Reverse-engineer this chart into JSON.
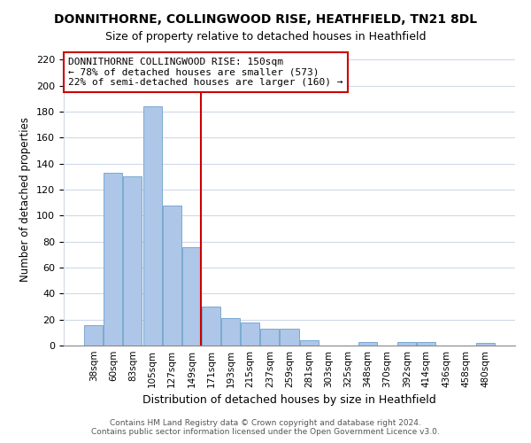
{
  "title": "DONNITHORNE, COLLINGWOOD RISE, HEATHFIELD, TN21 8DL",
  "subtitle": "Size of property relative to detached houses in Heathfield",
  "xlabel": "Distribution of detached houses by size in Heathfield",
  "ylabel": "Number of detached properties",
  "bar_labels": [
    "38sqm",
    "60sqm",
    "83sqm",
    "105sqm",
    "127sqm",
    "149sqm",
    "171sqm",
    "193sqm",
    "215sqm",
    "237sqm",
    "259sqm",
    "281sqm",
    "303sqm",
    "325sqm",
    "348sqm",
    "370sqm",
    "392sqm",
    "414sqm",
    "436sqm",
    "458sqm",
    "480sqm"
  ],
  "bar_values": [
    16,
    133,
    130,
    184,
    108,
    76,
    30,
    21,
    18,
    13,
    13,
    4,
    0,
    0,
    3,
    0,
    3,
    3,
    0,
    0,
    2
  ],
  "bar_color": "#aec6e8",
  "bar_edge_color": "#7aaad0",
  "vline_color": "#cc0000",
  "annotation_text": "DONNITHORNE COLLINGWOOD RISE: 150sqm\n← 78% of detached houses are smaller (573)\n22% of semi-detached houses are larger (160) →",
  "annotation_box_facecolor": "#ffffff",
  "annotation_box_edgecolor": "#cc0000",
  "ylim": [
    0,
    225
  ],
  "yticks": [
    0,
    20,
    40,
    60,
    80,
    100,
    120,
    140,
    160,
    180,
    200,
    220
  ],
  "footer_line1": "Contains HM Land Registry data © Crown copyright and database right 2024.",
  "footer_line2": "Contains public sector information licensed under the Open Government Licence v3.0.",
  "bg_color": "#ffffff",
  "grid_color": "#d0d8e8"
}
